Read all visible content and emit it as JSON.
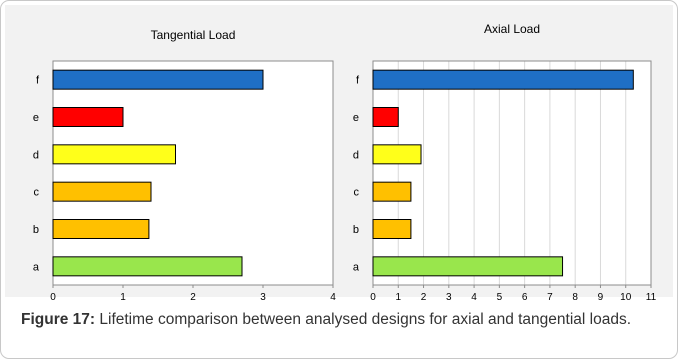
{
  "chart_data": [
    {
      "type": "bar",
      "orientation": "horizontal",
      "title": "Tangential Load",
      "categories": [
        "a",
        "b",
        "c",
        "d",
        "e",
        "f"
      ],
      "values": [
        2.7,
        1.37,
        1.4,
        1.75,
        1.0,
        3.0
      ],
      "colors": [
        "#99e64c",
        "#ffc000",
        "#ffc000",
        "#ffff1a",
        "#ff0000",
        "#1f6fc5"
      ],
      "xlim": [
        0,
        4
      ],
      "xticks": [
        "0",
        "1",
        "2",
        "3",
        "4"
      ],
      "grid": false
    },
    {
      "type": "bar",
      "orientation": "horizontal",
      "title": "Axial Load",
      "categories": [
        "a",
        "b",
        "c",
        "d",
        "e",
        "f"
      ],
      "values": [
        7.5,
        1.5,
        1.5,
        1.9,
        1.0,
        10.3
      ],
      "colors": [
        "#99e64c",
        "#ffc000",
        "#ffc000",
        "#ffff1a",
        "#ff0000",
        "#1f6fc5"
      ],
      "xlim": [
        0,
        11
      ],
      "xticks": [
        "0",
        "1",
        "2",
        "3",
        "4",
        "5",
        "6",
        "7",
        "8",
        "9",
        "10",
        "11"
      ],
      "grid": true
    }
  ],
  "caption": {
    "label": "Figure 17:",
    "text": " Lifetime comparison between analysed designs for axial and tangential loads."
  }
}
